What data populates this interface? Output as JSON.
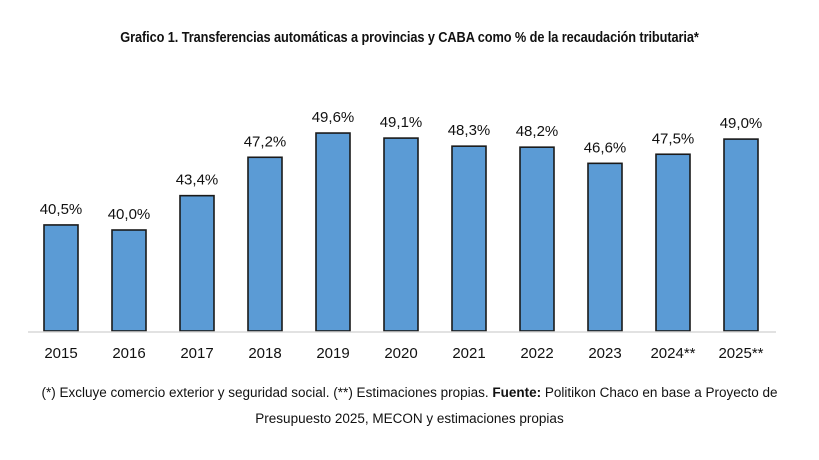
{
  "chart_data": {
    "type": "bar",
    "title": "Grafico 1. Transferencias automáticas a provincias y CABA como % de la recaudación tributaria*",
    "categories": [
      "2015",
      "2016",
      "2017",
      "2018",
      "2019",
      "2020",
      "2021",
      "2022",
      "2023",
      "2024**",
      "2025**"
    ],
    "values": [
      40.5,
      40.0,
      43.4,
      47.2,
      49.6,
      49.1,
      48.3,
      48.2,
      46.6,
      47.5,
      49.0
    ],
    "data_labels": [
      "40,5%",
      "40,0%",
      "43,4%",
      "47,2%",
      "49,6%",
      "49,1%",
      "48,3%",
      "48,2%",
      "46,6%",
      "47,5%",
      "49,0%"
    ],
    "xlabel": "",
    "ylabel": "",
    "ylim": [
      30,
      52
    ],
    "grid": false,
    "y_axis_visible": false,
    "bar_color": "#5B9BD5",
    "bar_edge_color": "#1a1a1a"
  },
  "footnote": {
    "line1_prefix": "(*) Excluye comercio exterior y seguridad social. (**) Estimaciones propias. ",
    "source_label": "Fuente:",
    "line1_suffix": " Politikon Chaco en base a Proyecto de",
    "line2": "Presupuesto 2025, MECON y estimaciones propias"
  }
}
